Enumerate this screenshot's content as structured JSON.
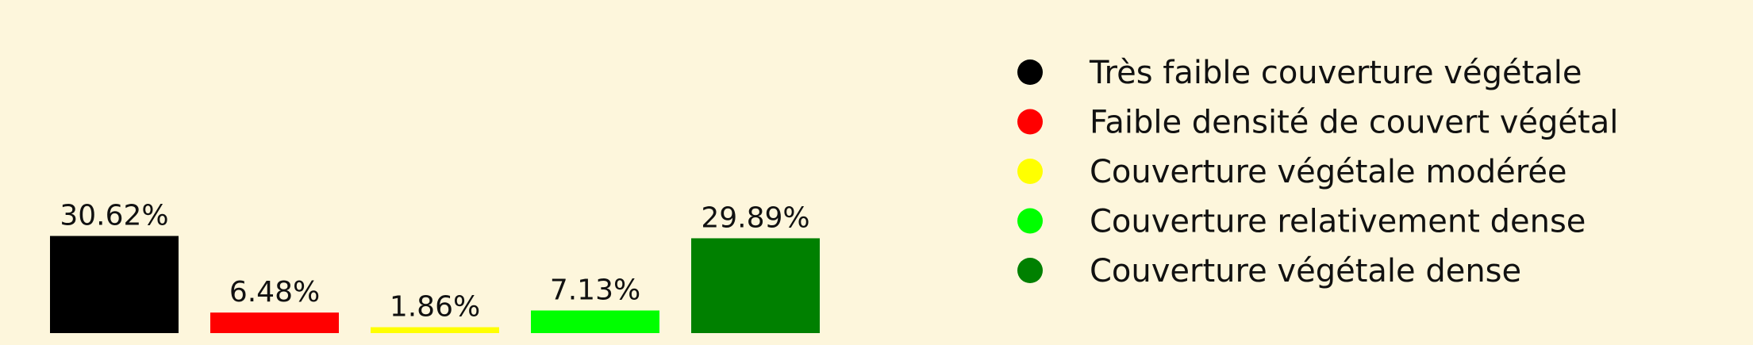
{
  "chart_data": {
    "type": "bar",
    "categories": [
      "Très faible couverture végétale",
      "Faible densité de couvert végétal",
      "Couverture végétale modérée",
      "Couverture relativement dense",
      "Couverture végétale dense"
    ],
    "values": [
      30.62,
      6.48,
      1.86,
      7.13,
      29.89
    ],
    "data_labels": [
      "30.62%",
      "6.48%",
      "1.86%",
      "7.13%",
      "29.89%"
    ],
    "colors": [
      "#000000",
      "#ff0000",
      "#ffff00",
      "#00ff00",
      "#008000"
    ],
    "unit": "%",
    "ylim": [
      0,
      100
    ],
    "grid": false,
    "legend": {
      "placement": "right",
      "entries": [
        "Très faible couverture végétale",
        "Faible densité de couvert végétal",
        "Couverture végétale modérée",
        "Couverture relativement dense",
        "Couverture végétale dense"
      ]
    }
  }
}
